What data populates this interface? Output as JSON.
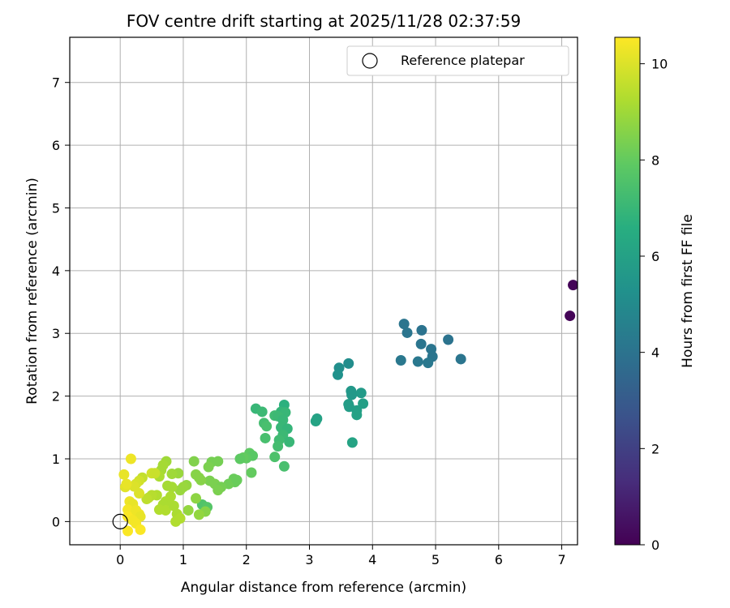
{
  "chart_data": {
    "type": "scatter",
    "title": "FOV centre drift starting at 2025/11/28 02:37:59",
    "xlabel": "Angular distance from reference (arcmin)",
    "ylabel": "Rotation from reference (arcmin)",
    "xlim": [
      -0.8,
      7.25
    ],
    "ylim": [
      -0.37,
      7.72
    ],
    "xticks": [
      0,
      1,
      2,
      3,
      4,
      5,
      6,
      7
    ],
    "yticks": [
      0,
      1,
      2,
      3,
      4,
      5,
      6,
      7
    ],
    "grid": true,
    "legend": {
      "position": "top-right",
      "entries": [
        "Reference platepar"
      ]
    },
    "reference_point": {
      "label": "Reference platepar",
      "x": 0,
      "y": 0
    },
    "colorbar": {
      "label": "Hours from first FF file",
      "min": 0,
      "max": 10.55,
      "ticks": [
        0,
        2,
        4,
        6,
        8,
        10
      ],
      "colormap": "viridis"
    },
    "points": [
      {
        "x": 7.18,
        "y": 3.77,
        "h": 0.1
      },
      {
        "x": 7.13,
        "y": 3.28,
        "h": 0.1
      },
      {
        "x": 4.5,
        "y": 3.15,
        "h": 4.1
      },
      {
        "x": 4.55,
        "y": 3.01,
        "h": 4.1
      },
      {
        "x": 4.78,
        "y": 3.05,
        "h": 4.0
      },
      {
        "x": 4.77,
        "y": 2.83,
        "h": 4.1
      },
      {
        "x": 5.2,
        "y": 2.9,
        "h": 4.0
      },
      {
        "x": 4.93,
        "y": 2.75,
        "h": 4.1
      },
      {
        "x": 4.95,
        "y": 2.63,
        "h": 4.1
      },
      {
        "x": 4.45,
        "y": 2.57,
        "h": 4.2
      },
      {
        "x": 4.72,
        "y": 2.55,
        "h": 4.2
      },
      {
        "x": 4.88,
        "y": 2.53,
        "h": 4.2
      },
      {
        "x": 5.4,
        "y": 2.59,
        "h": 4.1
      },
      {
        "x": 3.62,
        "y": 2.52,
        "h": 5.1
      },
      {
        "x": 3.47,
        "y": 2.45,
        "h": 5.2
      },
      {
        "x": 3.45,
        "y": 2.34,
        "h": 5.3
      },
      {
        "x": 3.66,
        "y": 2.08,
        "h": 5.6
      },
      {
        "x": 3.67,
        "y": 2.02,
        "h": 5.6
      },
      {
        "x": 3.82,
        "y": 2.05,
        "h": 5.7
      },
      {
        "x": 3.62,
        "y": 1.87,
        "h": 5.8
      },
      {
        "x": 3.63,
        "y": 1.83,
        "h": 5.8
      },
      {
        "x": 3.85,
        "y": 1.88,
        "h": 5.9
      },
      {
        "x": 3.75,
        "y": 1.77,
        "h": 5.9
      },
      {
        "x": 3.75,
        "y": 1.7,
        "h": 6.0
      },
      {
        "x": 3.12,
        "y": 1.64,
        "h": 6.0
      },
      {
        "x": 3.1,
        "y": 1.6,
        "h": 6.1
      },
      {
        "x": 3.68,
        "y": 1.26,
        "h": 6.1
      },
      {
        "x": 2.15,
        "y": 1.8,
        "h": 7.0
      },
      {
        "x": 2.25,
        "y": 1.75,
        "h": 7.1
      },
      {
        "x": 2.6,
        "y": 1.86,
        "h": 6.7
      },
      {
        "x": 2.55,
        "y": 1.75,
        "h": 6.9
      },
      {
        "x": 2.62,
        "y": 1.74,
        "h": 7.0
      },
      {
        "x": 2.45,
        "y": 1.69,
        "h": 7.2
      },
      {
        "x": 2.5,
        "y": 1.68,
        "h": 7.1
      },
      {
        "x": 2.58,
        "y": 1.62,
        "h": 7.0
      },
      {
        "x": 2.28,
        "y": 1.57,
        "h": 7.3
      },
      {
        "x": 2.32,
        "y": 1.52,
        "h": 7.4
      },
      {
        "x": 2.55,
        "y": 1.5,
        "h": 7.0
      },
      {
        "x": 2.65,
        "y": 1.48,
        "h": 6.9
      },
      {
        "x": 2.58,
        "y": 1.38,
        "h": 7.1
      },
      {
        "x": 2.3,
        "y": 1.33,
        "h": 7.4
      },
      {
        "x": 2.52,
        "y": 1.3,
        "h": 7.2
      },
      {
        "x": 2.68,
        "y": 1.27,
        "h": 7.0
      },
      {
        "x": 2.5,
        "y": 1.2,
        "h": 7.3
      },
      {
        "x": 2.45,
        "y": 1.03,
        "h": 7.5
      },
      {
        "x": 2.6,
        "y": 0.88,
        "h": 7.4
      },
      {
        "x": 2.05,
        "y": 1.09,
        "h": 7.9
      },
      {
        "x": 2.1,
        "y": 1.05,
        "h": 7.8
      },
      {
        "x": 2.0,
        "y": 1.01,
        "h": 7.9
      },
      {
        "x": 1.95,
        "y": 1.02,
        "h": 8.0
      },
      {
        "x": 1.9,
        "y": 1.0,
        "h": 7.9
      },
      {
        "x": 2.08,
        "y": 0.78,
        "h": 8.0
      },
      {
        "x": 1.8,
        "y": 0.68,
        "h": 8.1
      },
      {
        "x": 1.82,
        "y": 0.63,
        "h": 8.1
      },
      {
        "x": 1.72,
        "y": 0.6,
        "h": 8.2
      },
      {
        "x": 1.85,
        "y": 0.66,
        "h": 8.1
      },
      {
        "x": 1.42,
        "y": 0.65,
        "h": 8.4
      },
      {
        "x": 1.5,
        "y": 0.6,
        "h": 8.4
      },
      {
        "x": 1.6,
        "y": 0.55,
        "h": 8.3
      },
      {
        "x": 1.55,
        "y": 0.5,
        "h": 8.4
      },
      {
        "x": 1.45,
        "y": 0.95,
        "h": 8.3
      },
      {
        "x": 1.55,
        "y": 0.96,
        "h": 8.3
      },
      {
        "x": 1.4,
        "y": 0.87,
        "h": 8.4
      },
      {
        "x": 1.17,
        "y": 0.96,
        "h": 8.5
      },
      {
        "x": 1.2,
        "y": 0.75,
        "h": 8.6
      },
      {
        "x": 1.25,
        "y": 0.7,
        "h": 8.6
      },
      {
        "x": 1.28,
        "y": 0.66,
        "h": 8.6
      },
      {
        "x": 1.3,
        "y": 0.27,
        "h": 7.6
      },
      {
        "x": 1.38,
        "y": 0.23,
        "h": 7.7
      },
      {
        "x": 1.35,
        "y": 0.16,
        "h": 8.6
      },
      {
        "x": 1.2,
        "y": 0.37,
        "h": 8.7
      },
      {
        "x": 1.25,
        "y": 0.11,
        "h": 8.8
      },
      {
        "x": 1.08,
        "y": 0.18,
        "h": 8.8
      },
      {
        "x": 1.05,
        "y": 0.58,
        "h": 8.8
      },
      {
        "x": 1.0,
        "y": 0.55,
        "h": 8.9
      },
      {
        "x": 0.95,
        "y": 0.5,
        "h": 8.9
      },
      {
        "x": 0.92,
        "y": 0.77,
        "h": 8.9
      },
      {
        "x": 0.82,
        "y": 0.76,
        "h": 9.0
      },
      {
        "x": 0.73,
        "y": 0.96,
        "h": 9.0
      },
      {
        "x": 0.68,
        "y": 0.9,
        "h": 9.1
      },
      {
        "x": 0.65,
        "y": 0.82,
        "h": 9.1
      },
      {
        "x": 0.62,
        "y": 0.72,
        "h": 9.2
      },
      {
        "x": 0.75,
        "y": 0.57,
        "h": 9.1
      },
      {
        "x": 0.82,
        "y": 0.55,
        "h": 9.1
      },
      {
        "x": 0.8,
        "y": 0.4,
        "h": 9.2
      },
      {
        "x": 0.72,
        "y": 0.32,
        "h": 9.2
      },
      {
        "x": 0.68,
        "y": 0.27,
        "h": 9.2
      },
      {
        "x": 0.62,
        "y": 0.19,
        "h": 9.3
      },
      {
        "x": 0.72,
        "y": 0.18,
        "h": 9.3
      },
      {
        "x": 0.85,
        "y": 0.25,
        "h": 9.2
      },
      {
        "x": 0.9,
        "y": 0.12,
        "h": 9.2
      },
      {
        "x": 0.95,
        "y": 0.05,
        "h": 9.3
      },
      {
        "x": 0.88,
        "y": 0.0,
        "h": 9.3
      },
      {
        "x": 0.58,
        "y": 0.42,
        "h": 9.3
      },
      {
        "x": 0.5,
        "y": 0.42,
        "h": 9.4
      },
      {
        "x": 0.45,
        "y": 0.38,
        "h": 9.4
      },
      {
        "x": 0.42,
        "y": 0.36,
        "h": 9.5
      },
      {
        "x": 0.35,
        "y": 0.7,
        "h": 9.6
      },
      {
        "x": 0.5,
        "y": 0.77,
        "h": 9.8
      },
      {
        "x": 0.55,
        "y": 0.77,
        "h": 9.7
      },
      {
        "x": 0.3,
        "y": 0.65,
        "h": 9.8
      },
      {
        "x": 0.25,
        "y": 0.6,
        "h": 9.9
      },
      {
        "x": 0.22,
        "y": 0.56,
        "h": 10.0
      },
      {
        "x": 0.08,
        "y": 0.55,
        "h": 10.1
      },
      {
        "x": 0.1,
        "y": 0.6,
        "h": 10.2
      },
      {
        "x": 0.06,
        "y": 0.75,
        "h": 10.2
      },
      {
        "x": 0.17,
        "y": 1.0,
        "h": 10.3
      },
      {
        "x": 0.3,
        "y": 0.45,
        "h": 10.0
      },
      {
        "x": 0.15,
        "y": 0.32,
        "h": 10.3
      },
      {
        "x": 0.2,
        "y": 0.28,
        "h": 10.2
      },
      {
        "x": 0.12,
        "y": 0.19,
        "h": 10.4
      },
      {
        "x": 0.2,
        "y": 0.15,
        "h": 10.4
      },
      {
        "x": 0.25,
        "y": 0.18,
        "h": 10.3
      },
      {
        "x": 0.3,
        "y": 0.12,
        "h": 10.3
      },
      {
        "x": 0.32,
        "y": 0.08,
        "h": 10.2
      },
      {
        "x": 0.12,
        "y": 0.08,
        "h": 10.5
      },
      {
        "x": 0.2,
        "y": 0.02,
        "h": 10.4
      },
      {
        "x": 0.25,
        "y": -0.03,
        "h": 10.4
      },
      {
        "x": 0.12,
        "y": -0.15,
        "h": 10.5
      },
      {
        "x": 0.32,
        "y": -0.13,
        "h": 10.5
      }
    ]
  }
}
